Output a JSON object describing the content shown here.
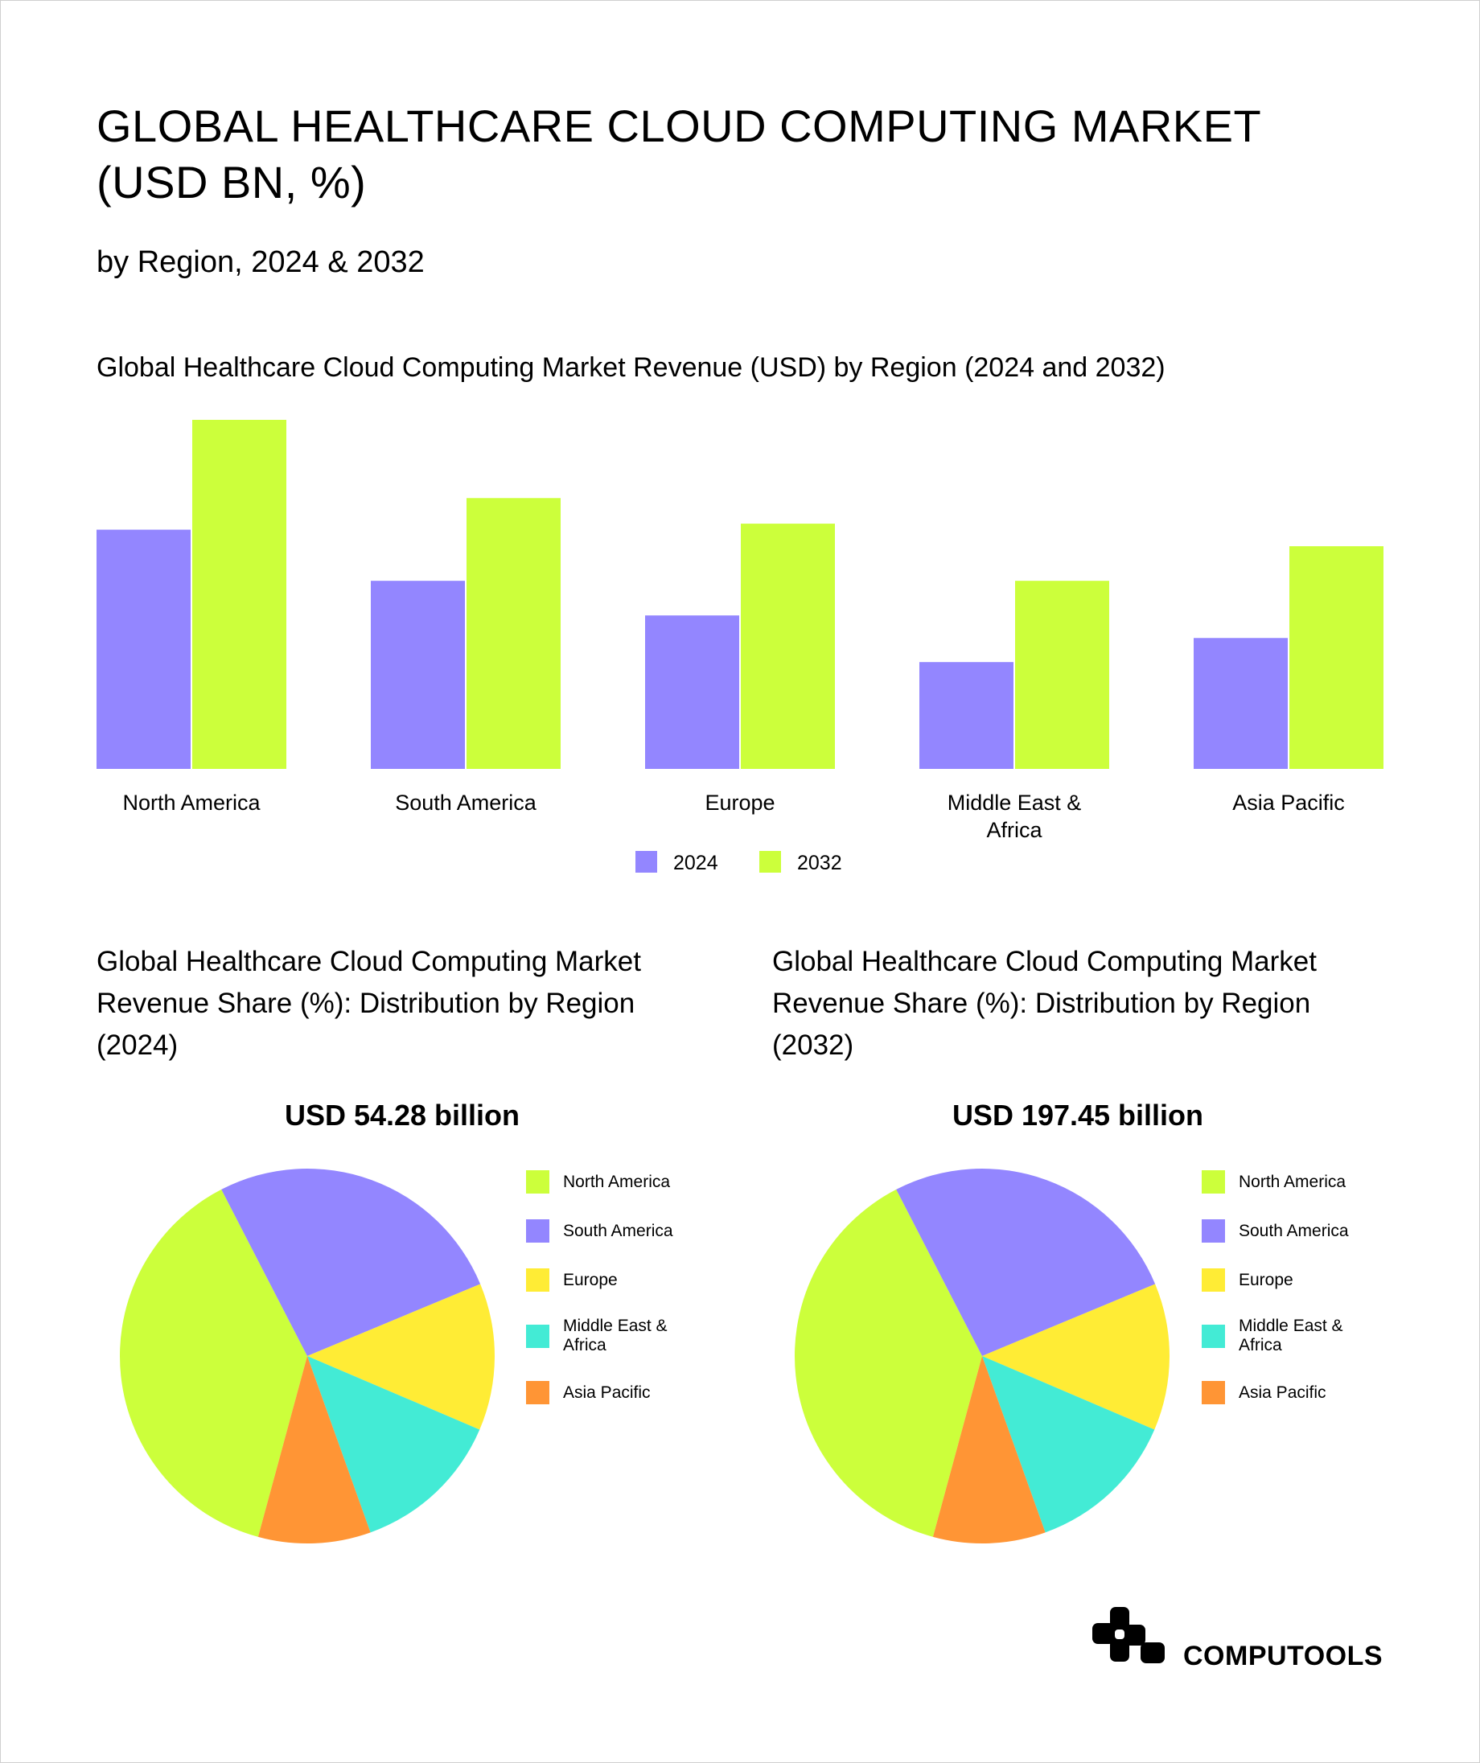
{
  "header": {
    "title_line1": "GLOBAL HEALTHCARE CLOUD COMPUTING MARKET",
    "title_line2": "(USD BN, %)",
    "subtitle": "by Region, 2024 & 2032"
  },
  "colors": {
    "north_america": "#ccff3b",
    "south_america": "#9386ff",
    "europe": "#ffec35",
    "middle_east_africa": "#43ebd5",
    "asia_pacific": "#ff9535",
    "series_2024": "#9386ff",
    "series_2032": "#ccff3b"
  },
  "chart_data": [
    {
      "type": "bar",
      "title": "Global Healthcare Cloud Computing Market Revenue (USD) by Region (2024 and 2032)",
      "categories": [
        "North America",
        "South America",
        "Europe",
        "Middle East & Africa",
        "Asia Pacific"
      ],
      "category_lines": [
        [
          "North America"
        ],
        [
          "South America"
        ],
        [
          "Europe"
        ],
        [
          "Middle East &",
          "Africa"
        ],
        [
          "Asia Pacific"
        ]
      ],
      "series": [
        {
          "name": "2024",
          "values": [
            15.9,
            12.5,
            10.2,
            7.1,
            8.7
          ]
        },
        {
          "name": "2032",
          "values": [
            23.2,
            18.0,
            16.3,
            12.5,
            14.8
          ]
        }
      ],
      "ylim": [
        0,
        23.2
      ],
      "grid": false,
      "axes_visible": false,
      "legend_placement": "bottom-center"
    },
    {
      "type": "pie",
      "title": "Global Healthcare Cloud Computing Market Revenue Share (%): Distribution by Region (2024)",
      "total_label": "USD 54.28 billion",
      "labels": [
        "North America",
        "South America",
        "Europe",
        "Middle East & Africa",
        "Asia Pacific"
      ],
      "label_lines": [
        [
          "North America"
        ],
        [
          "South America"
        ],
        [
          "Europe"
        ],
        [
          "Middle East &",
          "Africa"
        ],
        [
          "Asia Pacific"
        ]
      ],
      "values": [
        38.2,
        26.3,
        12.7,
        13.1,
        9.7
      ],
      "legend_placement": "right"
    },
    {
      "type": "pie",
      "title": "Global Healthcare Cloud Computing Market Revenue Share (%): Distribution by Region (2032)",
      "total_label": "USD 197.45 billion",
      "labels": [
        "North America",
        "South America",
        "Europe",
        "Middle East & Africa",
        "Asia Pacific"
      ],
      "label_lines": [
        [
          "North America"
        ],
        [
          "South America"
        ],
        [
          "Europe"
        ],
        [
          "Middle East &",
          "Africa"
        ],
        [
          "Asia Pacific"
        ]
      ],
      "values": [
        38.2,
        26.3,
        12.7,
        13.1,
        9.7
      ],
      "legend_placement": "right"
    }
  ],
  "pie_titles": {
    "left": [
      "Global Healthcare Cloud Computing Market",
      "Revenue Share (%): Distribution by Region",
      "(2024)"
    ],
    "right": [
      "Global Healthcare Cloud Computing Market",
      "Revenue Share (%): Distribution by Region",
      "(2032)"
    ]
  },
  "brand": {
    "name": "COMPUTOOLS",
    "logo_icon": "computools-logo-icon"
  }
}
